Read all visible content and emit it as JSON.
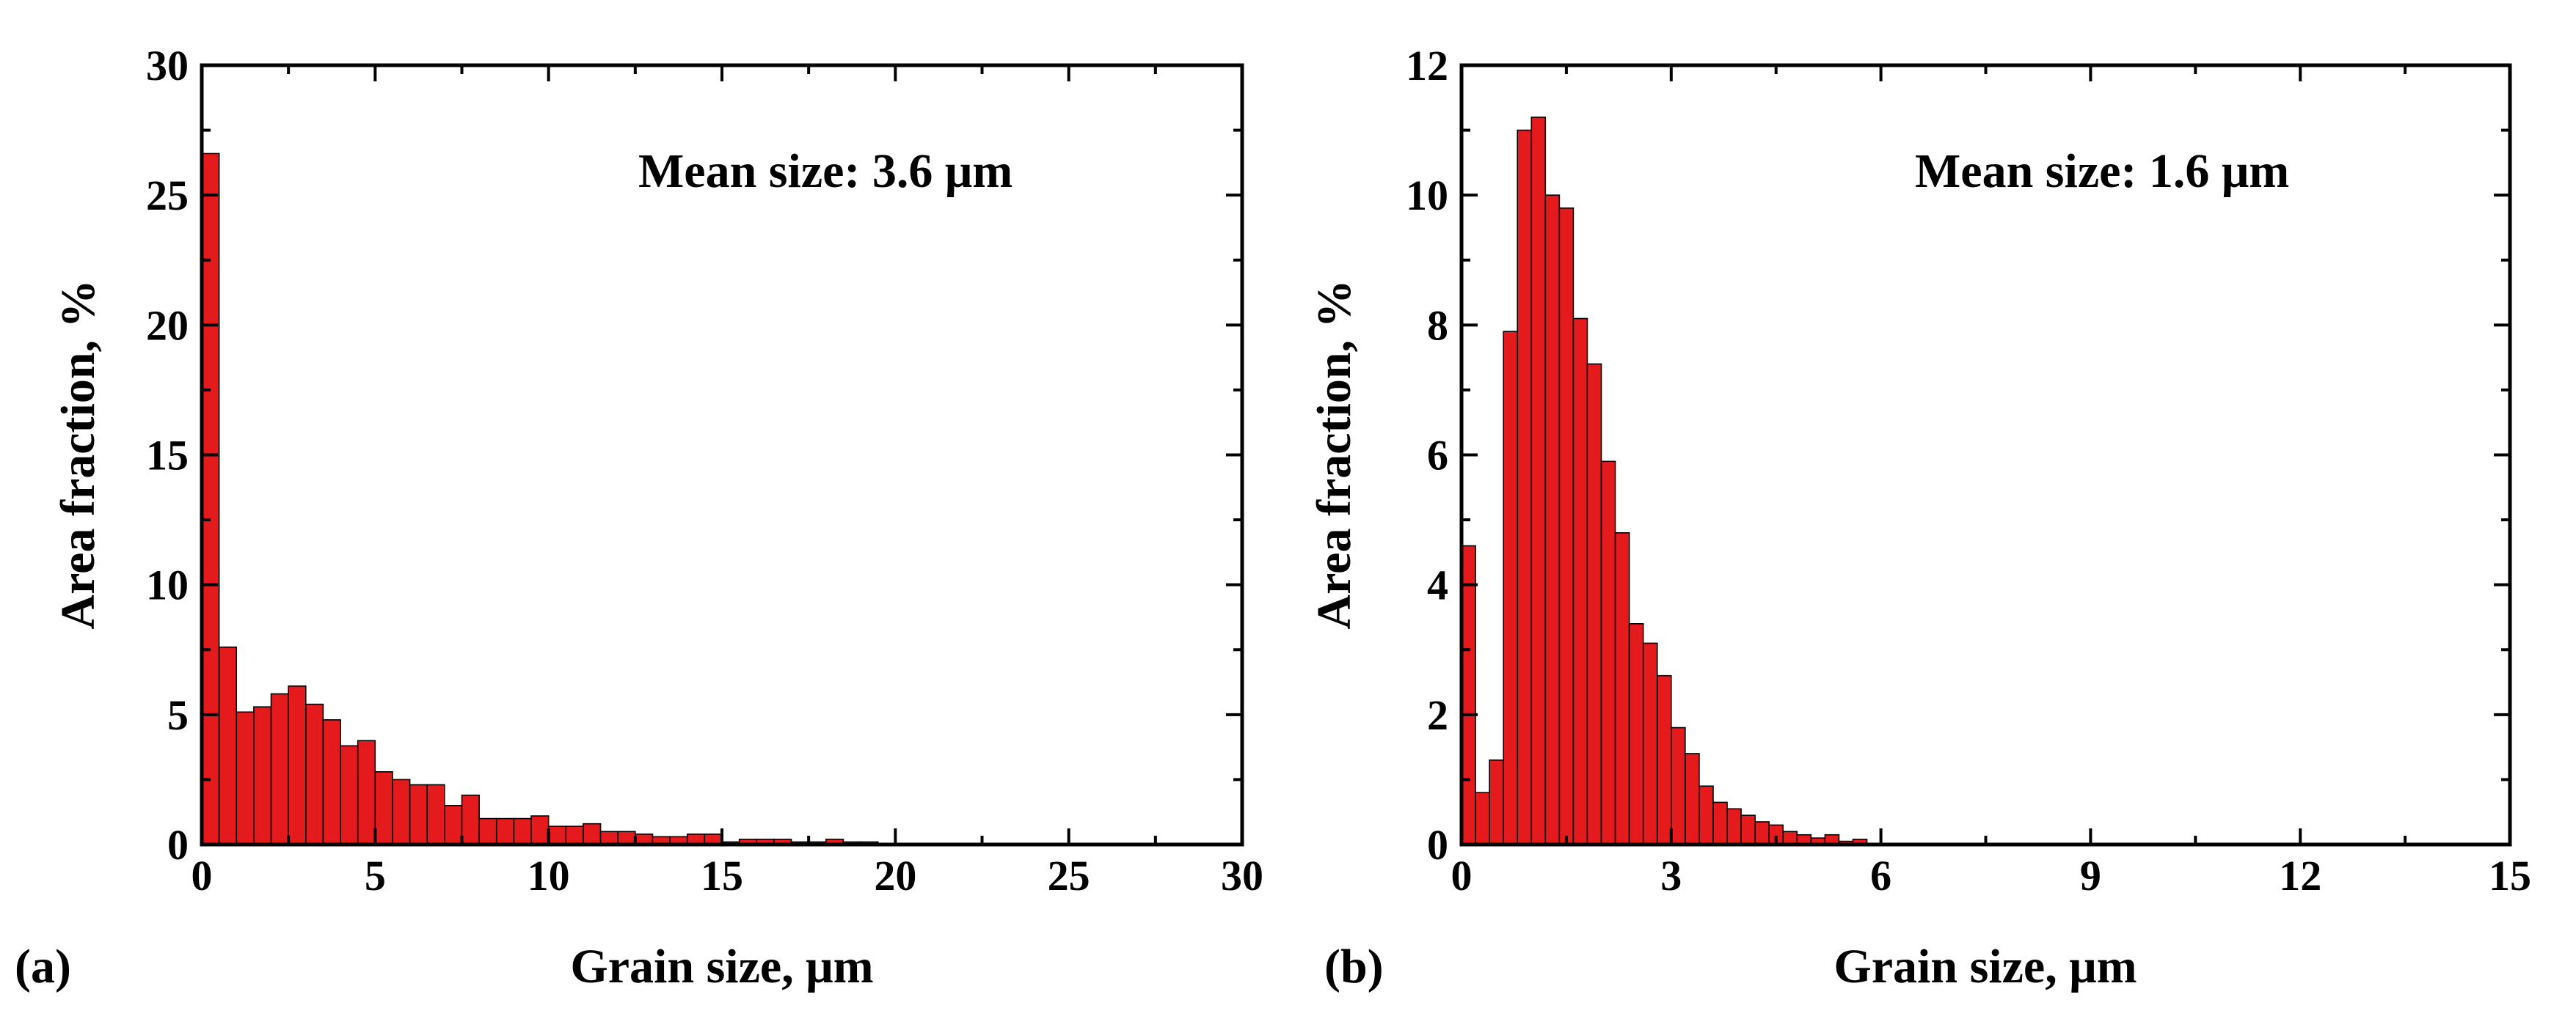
{
  "chart_data": [
    {
      "type": "bar",
      "panel_label": "(a)",
      "title": "",
      "annotation": "Mean size: 3.6 μm",
      "xlabel": "Grain size, μm",
      "ylabel": "Area fraction, %",
      "xlim": [
        0,
        30
      ],
      "ylim": [
        0,
        30
      ],
      "xticks": [
        "0",
        "5",
        "10",
        "15",
        "20",
        "25",
        "30"
      ],
      "yticks": [
        "0",
        "5",
        "10",
        "15",
        "20",
        "25",
        "30"
      ],
      "bar_color": "#e41a1c",
      "bin_width": 0.5,
      "x": [
        0.25,
        0.75,
        1.25,
        1.75,
        2.25,
        2.75,
        3.25,
        3.75,
        4.25,
        4.75,
        5.25,
        5.75,
        6.25,
        6.75,
        7.25,
        7.75,
        8.25,
        8.75,
        9.25,
        9.75,
        10.25,
        10.75,
        11.25,
        11.75,
        12.25,
        12.75,
        13.25,
        13.75,
        14.25,
        14.75,
        15.25,
        15.75,
        16.25,
        16.75,
        17.25,
        17.75,
        18.25,
        18.75,
        19.25
      ],
      "values": [
        26.6,
        7.6,
        5.1,
        5.3,
        5.8,
        6.1,
        5.4,
        4.8,
        3.8,
        4.0,
        2.8,
        2.5,
        2.3,
        2.3,
        1.5,
        1.9,
        1.0,
        1.0,
        1.0,
        1.1,
        0.7,
        0.7,
        0.8,
        0.5,
        0.5,
        0.4,
        0.3,
        0.3,
        0.4,
        0.4,
        0.1,
        0.2,
        0.2,
        0.2,
        0.1,
        0.1,
        0.2,
        0.1,
        0.1
      ]
    },
    {
      "type": "bar",
      "panel_label": "(b)",
      "title": "",
      "annotation": "Mean size: 1.6 μm",
      "xlabel": "Grain size, μm",
      "ylabel": "Area fraction, %",
      "xlim": [
        0,
        15
      ],
      "ylim": [
        0,
        12
      ],
      "xticks": [
        "0",
        "3",
        "6",
        "9",
        "12",
        "15"
      ],
      "yticks": [
        "0",
        "2",
        "4",
        "6",
        "8",
        "10",
        "12"
      ],
      "bar_color": "#e41a1c",
      "bin_width": 0.2,
      "x": [
        0.1,
        0.3,
        0.5,
        0.7,
        0.9,
        1.1,
        1.3,
        1.5,
        1.7,
        1.9,
        2.1,
        2.3,
        2.5,
        2.7,
        2.9,
        3.1,
        3.3,
        3.5,
        3.7,
        3.9,
        4.1,
        4.3,
        4.5,
        4.7,
        4.9,
        5.1,
        5.3,
        5.5,
        5.7
      ],
      "values": [
        4.6,
        0.8,
        1.3,
        7.9,
        11.0,
        11.2,
        10.0,
        9.8,
        8.1,
        7.4,
        5.9,
        4.8,
        3.4,
        3.1,
        2.6,
        1.8,
        1.4,
        0.9,
        0.65,
        0.55,
        0.45,
        0.35,
        0.3,
        0.2,
        0.15,
        0.1,
        0.15,
        0.05,
        0.08
      ]
    }
  ]
}
